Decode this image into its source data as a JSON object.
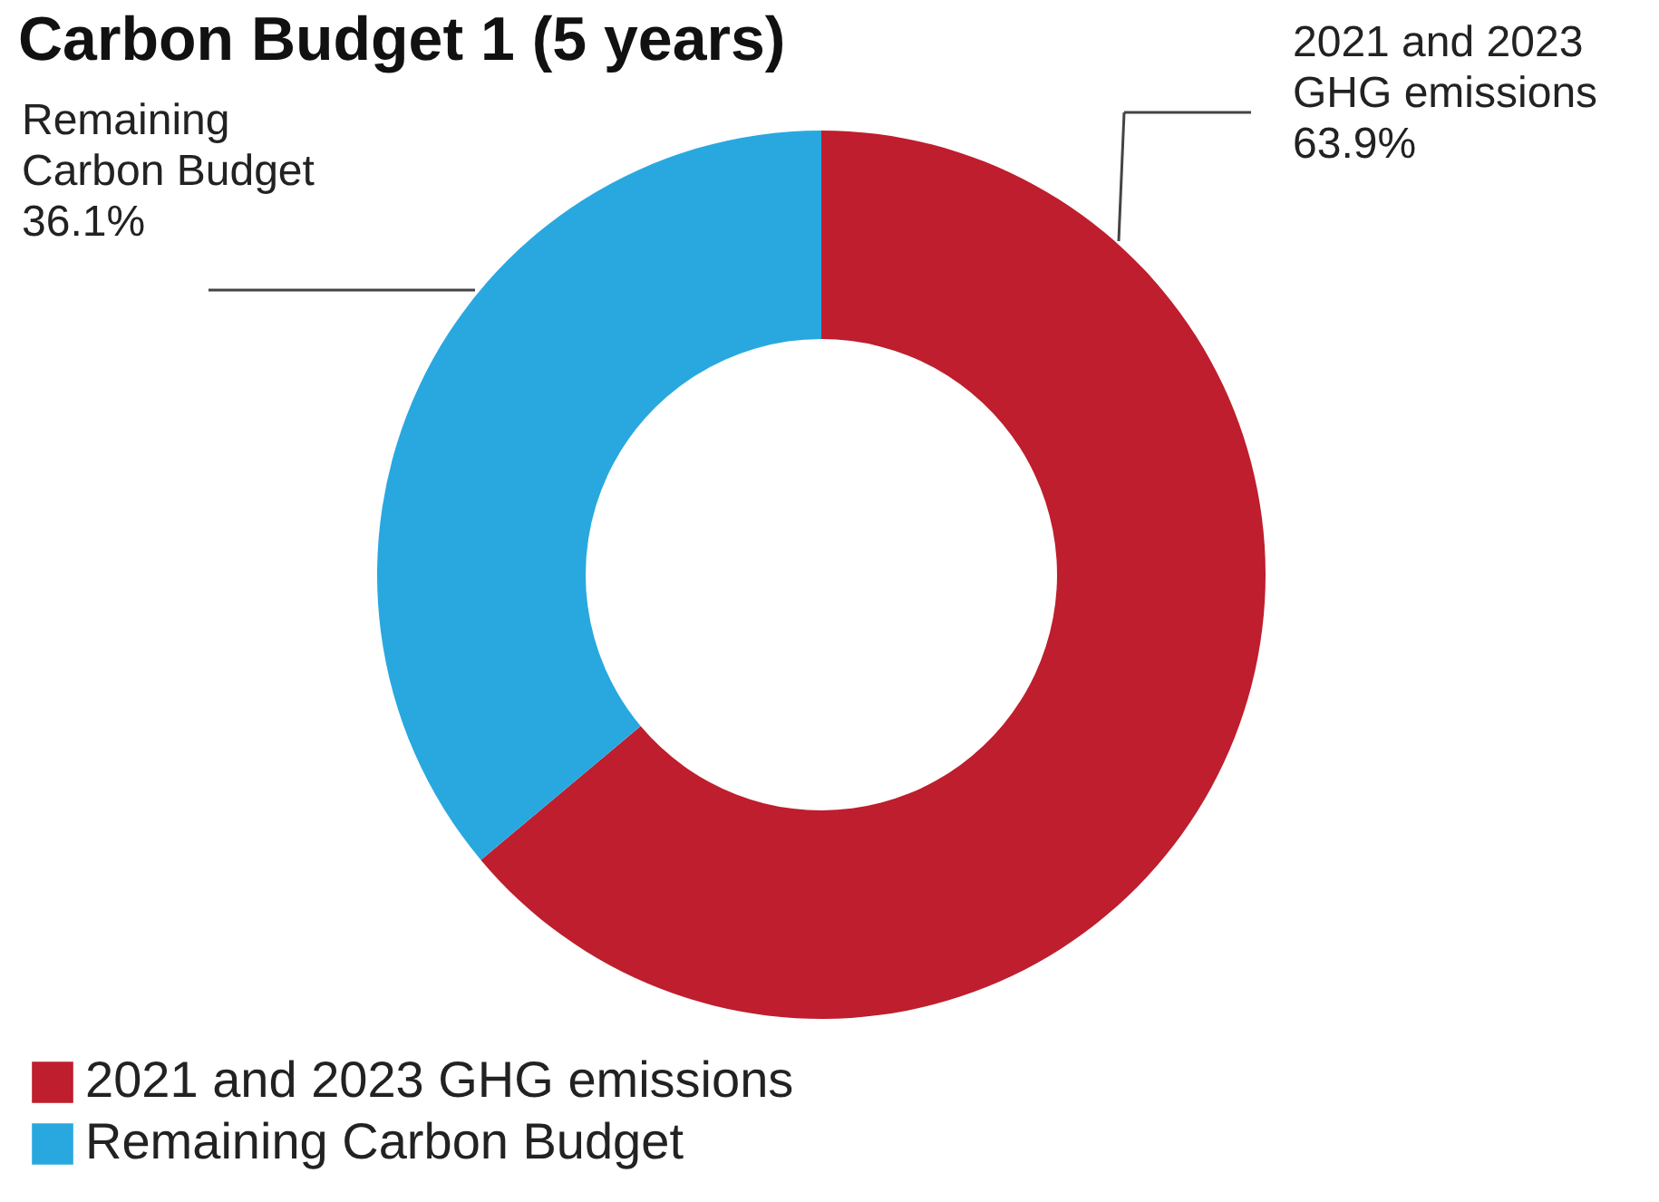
{
  "chart_data": {
    "type": "donut",
    "title": "Carbon Budget 1 (5 years)",
    "categories": [
      "2021 and 2023 GHG emissions",
      "Remaining Carbon Budget"
    ],
    "values": [
      63.9,
      36.1
    ],
    "value_labels": [
      "63.9%",
      "36.1%"
    ],
    "colors": [
      "#be1e2d",
      "#29a8e0"
    ],
    "legend": "bottom left"
  }
}
